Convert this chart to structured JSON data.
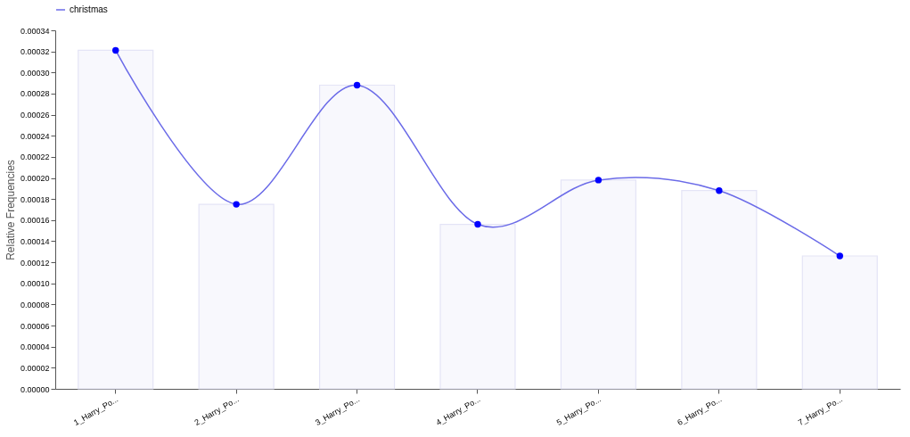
{
  "chart_data": {
    "type": "bar",
    "ylabel": "Relative Frequencies",
    "categories": [
      "1_Harry_Po...",
      "2_Harry_Po...",
      "3_Harry_Po...",
      "4_Harry_Po...",
      "5_Harry_Po...",
      "6_Harry_Po...",
      "7_Harry_Po..."
    ],
    "series": [
      {
        "color": "#f8f8fd",
        "values": [
          0.000321,
          0.000175,
          0.000288,
          0.000156,
          0.000198,
          0.000188,
          0.000126
        ]
      },
      {
        "type": "line",
        "name": "christmas",
        "color": "#6b6be8",
        "marker": "circle",
        "values": [
          0.000321,
          0.000175,
          0.000288,
          0.000156,
          0.000198,
          0.000188,
          0.000126
        ]
      }
    ],
    "ylim": [
      0,
      0.00034
    ],
    "yticks": [
      {
        "value": 0,
        "label": "0.00000"
      },
      {
        "value": 2e-05,
        "label": "0.00002"
      },
      {
        "value": 4e-05,
        "label": "0.00004"
      },
      {
        "value": 6e-05,
        "label": "0.00006"
      },
      {
        "value": 8e-05,
        "label": "0.00008"
      },
      {
        "value": 0.0001,
        "label": "0.00010"
      },
      {
        "value": 0.00012,
        "label": "0.00012"
      },
      {
        "value": 0.00014,
        "label": "0.00014"
      },
      {
        "value": 0.00016,
        "label": "0.00016"
      },
      {
        "value": 0.00018,
        "label": "0.00018"
      },
      {
        "value": 0.0002,
        "label": "0.00020"
      },
      {
        "value": 0.00022,
        "label": "0.00022"
      },
      {
        "value": 0.00024,
        "label": "0.00024"
      },
      {
        "value": 0.00026,
        "label": "0.00026"
      },
      {
        "value": 0.00028,
        "label": "0.00028"
      },
      {
        "value": 0.0003,
        "label": "0.00030"
      },
      {
        "value": 0.00032,
        "label": "0.00032"
      },
      {
        "value": 0.00034,
        "label": "0.00034"
      }
    ],
    "grid": false,
    "legend": "top"
  }
}
